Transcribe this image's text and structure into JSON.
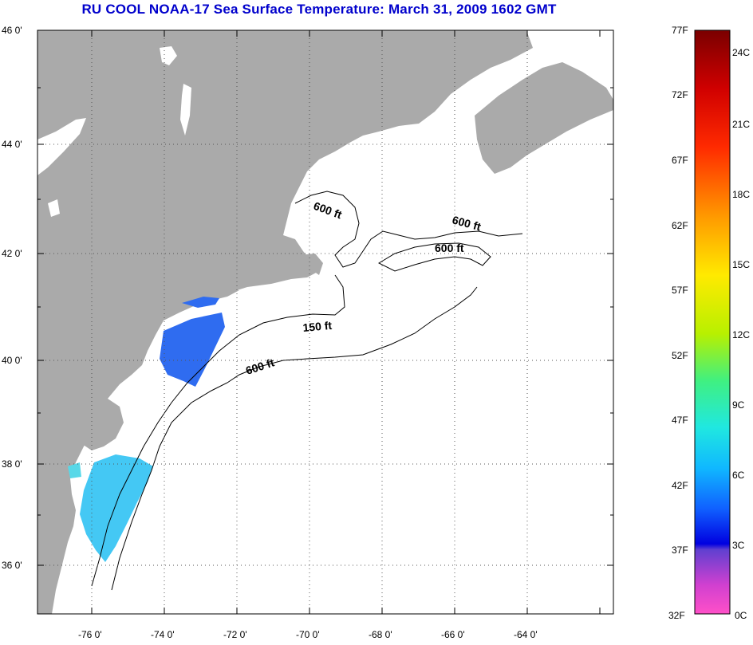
{
  "title": "RU COOL  NOAA-17  Sea Surface Temperature:  March 31, 2009 1602 GMT",
  "lat_labels": [
    "46 0'",
    "44 0'",
    "42 0'",
    "40 0'",
    "38 0'",
    "36 0'"
  ],
  "lon_labels": [
    "-76 0'",
    "-74 0'",
    "-72 0'",
    "-70 0'",
    "-68 0'",
    "-66 0'",
    "-64 0'"
  ],
  "contour_labels": {
    "c1": "600 ft",
    "c2": "600 ft",
    "c3": "600 ft",
    "c4": "150 ft",
    "c5": "600 ft"
  },
  "colorbar": {
    "f_labels": [
      "77F",
      "72F",
      "67F",
      "62F",
      "57F",
      "52F",
      "47F",
      "42F",
      "37F",
      "32F"
    ],
    "c_labels": [
      "24C",
      "21C",
      "18C",
      "15C",
      "12C",
      "9C",
      "6C",
      "3C",
      "0C"
    ]
  },
  "colors": {
    "land": "#aaaaaa",
    "water": "#ffffff",
    "title": "#0000cc",
    "sst_cold_blue": "#2f6cf0",
    "sst_cyan": "#44c8f4"
  }
}
